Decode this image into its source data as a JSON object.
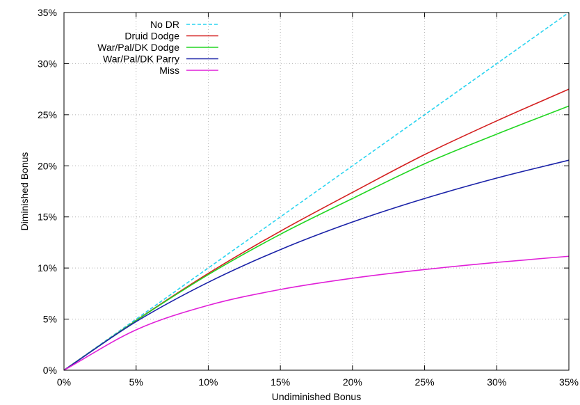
{
  "chart_data": {
    "type": "line",
    "title": "",
    "xlabel": "Undiminished Bonus",
    "ylabel": "Diminished Bonus",
    "xlim": [
      0,
      35
    ],
    "ylim": [
      0,
      35
    ],
    "grid": true,
    "legend_position": "top-left",
    "x_ticks": [
      {
        "value": 0,
        "label": "0%"
      },
      {
        "value": 5,
        "label": "5%"
      },
      {
        "value": 10,
        "label": "10%"
      },
      {
        "value": 15,
        "label": "15%"
      },
      {
        "value": 20,
        "label": "20%"
      },
      {
        "value": 25,
        "label": "25%"
      },
      {
        "value": 30,
        "label": "30%"
      },
      {
        "value": 35,
        "label": "35%"
      }
    ],
    "y_ticks": [
      {
        "value": 0,
        "label": "0%"
      },
      {
        "value": 5,
        "label": "5%"
      },
      {
        "value": 10,
        "label": "10%"
      },
      {
        "value": 15,
        "label": "15%"
      },
      {
        "value": 20,
        "label": "20%"
      },
      {
        "value": 25,
        "label": "25%"
      },
      {
        "value": 30,
        "label": "30%"
      },
      {
        "value": 35,
        "label": "35%"
      }
    ],
    "x": [
      0,
      5,
      10,
      15,
      20,
      25,
      30,
      35
    ],
    "series": [
      {
        "name": "No DR",
        "color": "#2ad4f0",
        "dashed": true,
        "values": [
          0,
          5,
          10,
          15,
          20,
          25,
          30,
          35
        ]
      },
      {
        "name": "Druid Dodge",
        "color": "#d42020",
        "dashed": false,
        "values": [
          0,
          4.87,
          9.47,
          13.6,
          17.4,
          21.1,
          24.4,
          27.5
        ]
      },
      {
        "name": "War/Pal/DK Dodge",
        "color": "#22d622",
        "dashed": false,
        "values": [
          0,
          4.85,
          9.35,
          13.3,
          16.8,
          20.2,
          23.1,
          25.85
        ]
      },
      {
        "name": "War/Pal/DK Parry",
        "color": "#1a22a8",
        "dashed": false,
        "values": [
          0,
          4.75,
          8.6,
          11.8,
          14.5,
          16.8,
          18.8,
          20.55
        ]
      },
      {
        "name": "Miss",
        "color": "#e020d8",
        "dashed": false,
        "values": [
          0,
          3.95,
          6.35,
          7.9,
          9.0,
          9.85,
          10.55,
          11.15
        ]
      }
    ]
  }
}
